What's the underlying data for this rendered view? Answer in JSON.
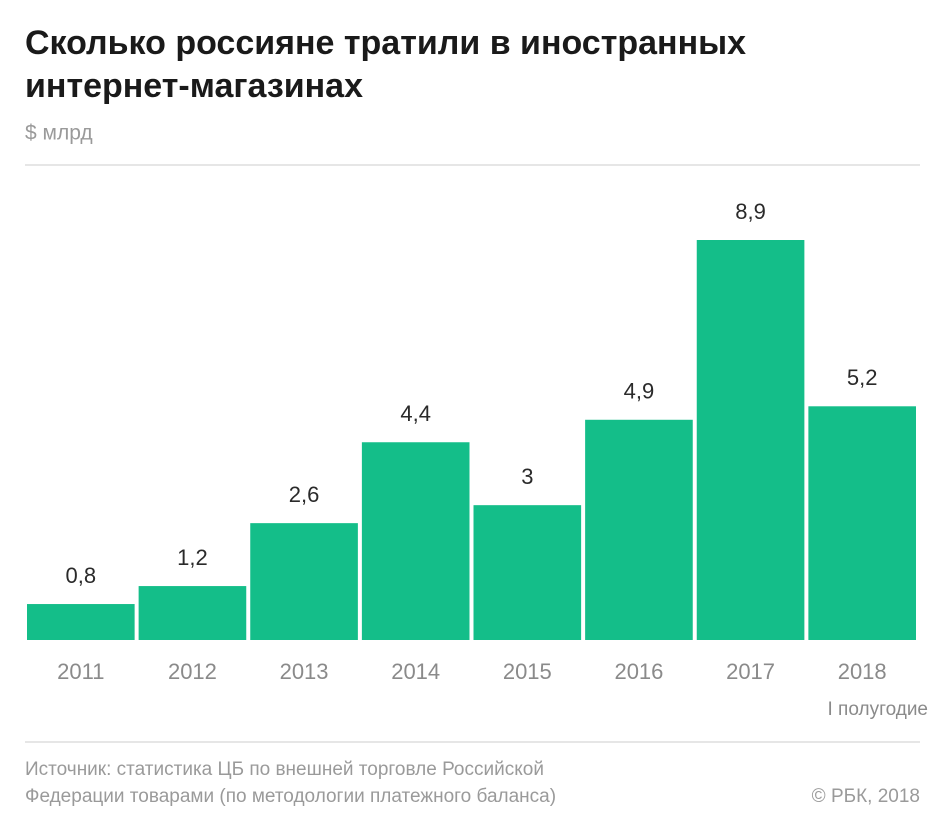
{
  "chart_data": {
    "type": "bar",
    "title": [
      "Сколько россияне тратили в иностранных",
      "интернет-магазинах"
    ],
    "subtitle": "$ млрд",
    "categories": [
      "2011",
      "2012",
      "2013",
      "2014",
      "2015",
      "2016",
      "2017",
      "2018"
    ],
    "values": [
      0.8,
      1.2,
      2.6,
      4.4,
      3,
      4.9,
      8.9,
      5.2
    ],
    "value_labels": [
      "0,8",
      "1,2",
      "2,6",
      "4,4",
      "3",
      "4,9",
      "8,9",
      "5,2"
    ],
    "color": "#14be89",
    "annotation": "I полугодие",
    "source": [
      "Источник: статистика ЦБ по внешней торговле Российской",
      "Федерации товарами (по методологии платежного баланса)"
    ],
    "credit": "© РБК, 2018"
  }
}
